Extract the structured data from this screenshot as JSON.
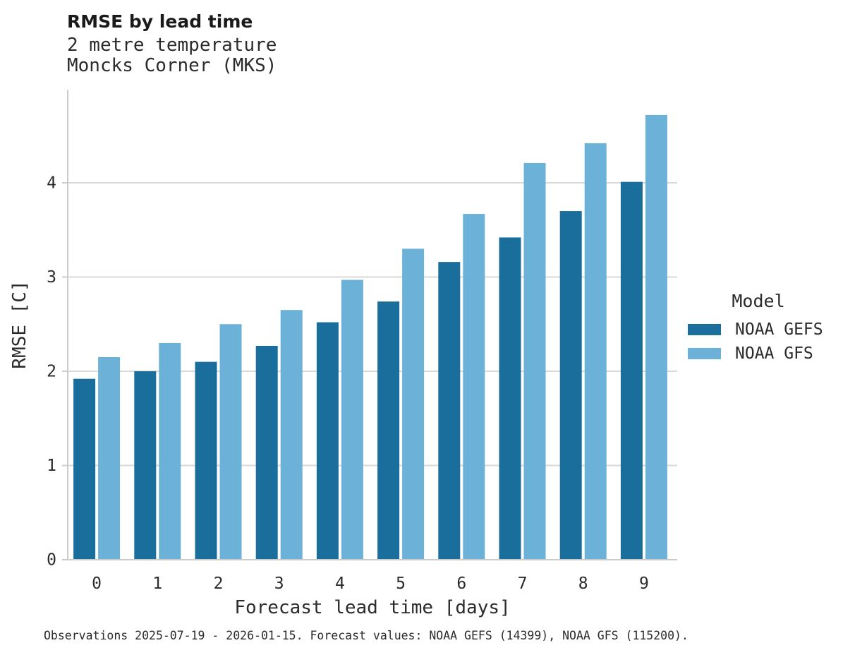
{
  "header": {
    "title": "RMSE by lead time",
    "subtitle_line1": "2 metre temperature",
    "subtitle_line2": "Moncks Corner (MKS)"
  },
  "chart_data": {
    "type": "bar",
    "title": "RMSE by lead time",
    "subtitle": [
      "2 metre temperature",
      "Moncks Corner (MKS)"
    ],
    "categories": [
      "0",
      "1",
      "2",
      "3",
      "4",
      "5",
      "6",
      "7",
      "8",
      "9"
    ],
    "series": [
      {
        "name": "NOAA GEFS",
        "color": "#1a6e9c",
        "values": [
          1.92,
          2.0,
          2.1,
          2.27,
          2.52,
          2.74,
          3.16,
          3.42,
          3.7,
          4.01
        ]
      },
      {
        "name": "NOAA GFS",
        "color": "#6cb1d8",
        "values": [
          2.15,
          2.3,
          2.5,
          2.65,
          2.97,
          3.3,
          3.67,
          4.21,
          4.42,
          4.72
        ]
      }
    ],
    "xlabel": "Forecast lead time [days]",
    "ylabel": "RMSE [C]",
    "yticks": [
      0,
      1,
      2,
      3,
      4
    ],
    "ylim": [
      0,
      4.99
    ],
    "grid": "horizontal",
    "legend_title": "Model",
    "legend_position": "center right",
    "colors": {
      "grid": "#d9d9d9",
      "spine": "#cccccc",
      "tick_text": "#2b2b2b"
    }
  },
  "legend": {
    "title": "Model",
    "entries": [
      {
        "label": "NOAA GEFS"
      },
      {
        "label": "NOAA GFS"
      }
    ]
  },
  "footer": {
    "text": "Observations 2025-07-19 - 2026-01-15. Forecast values: NOAA GEFS (14399), NOAA GFS (115200)."
  }
}
